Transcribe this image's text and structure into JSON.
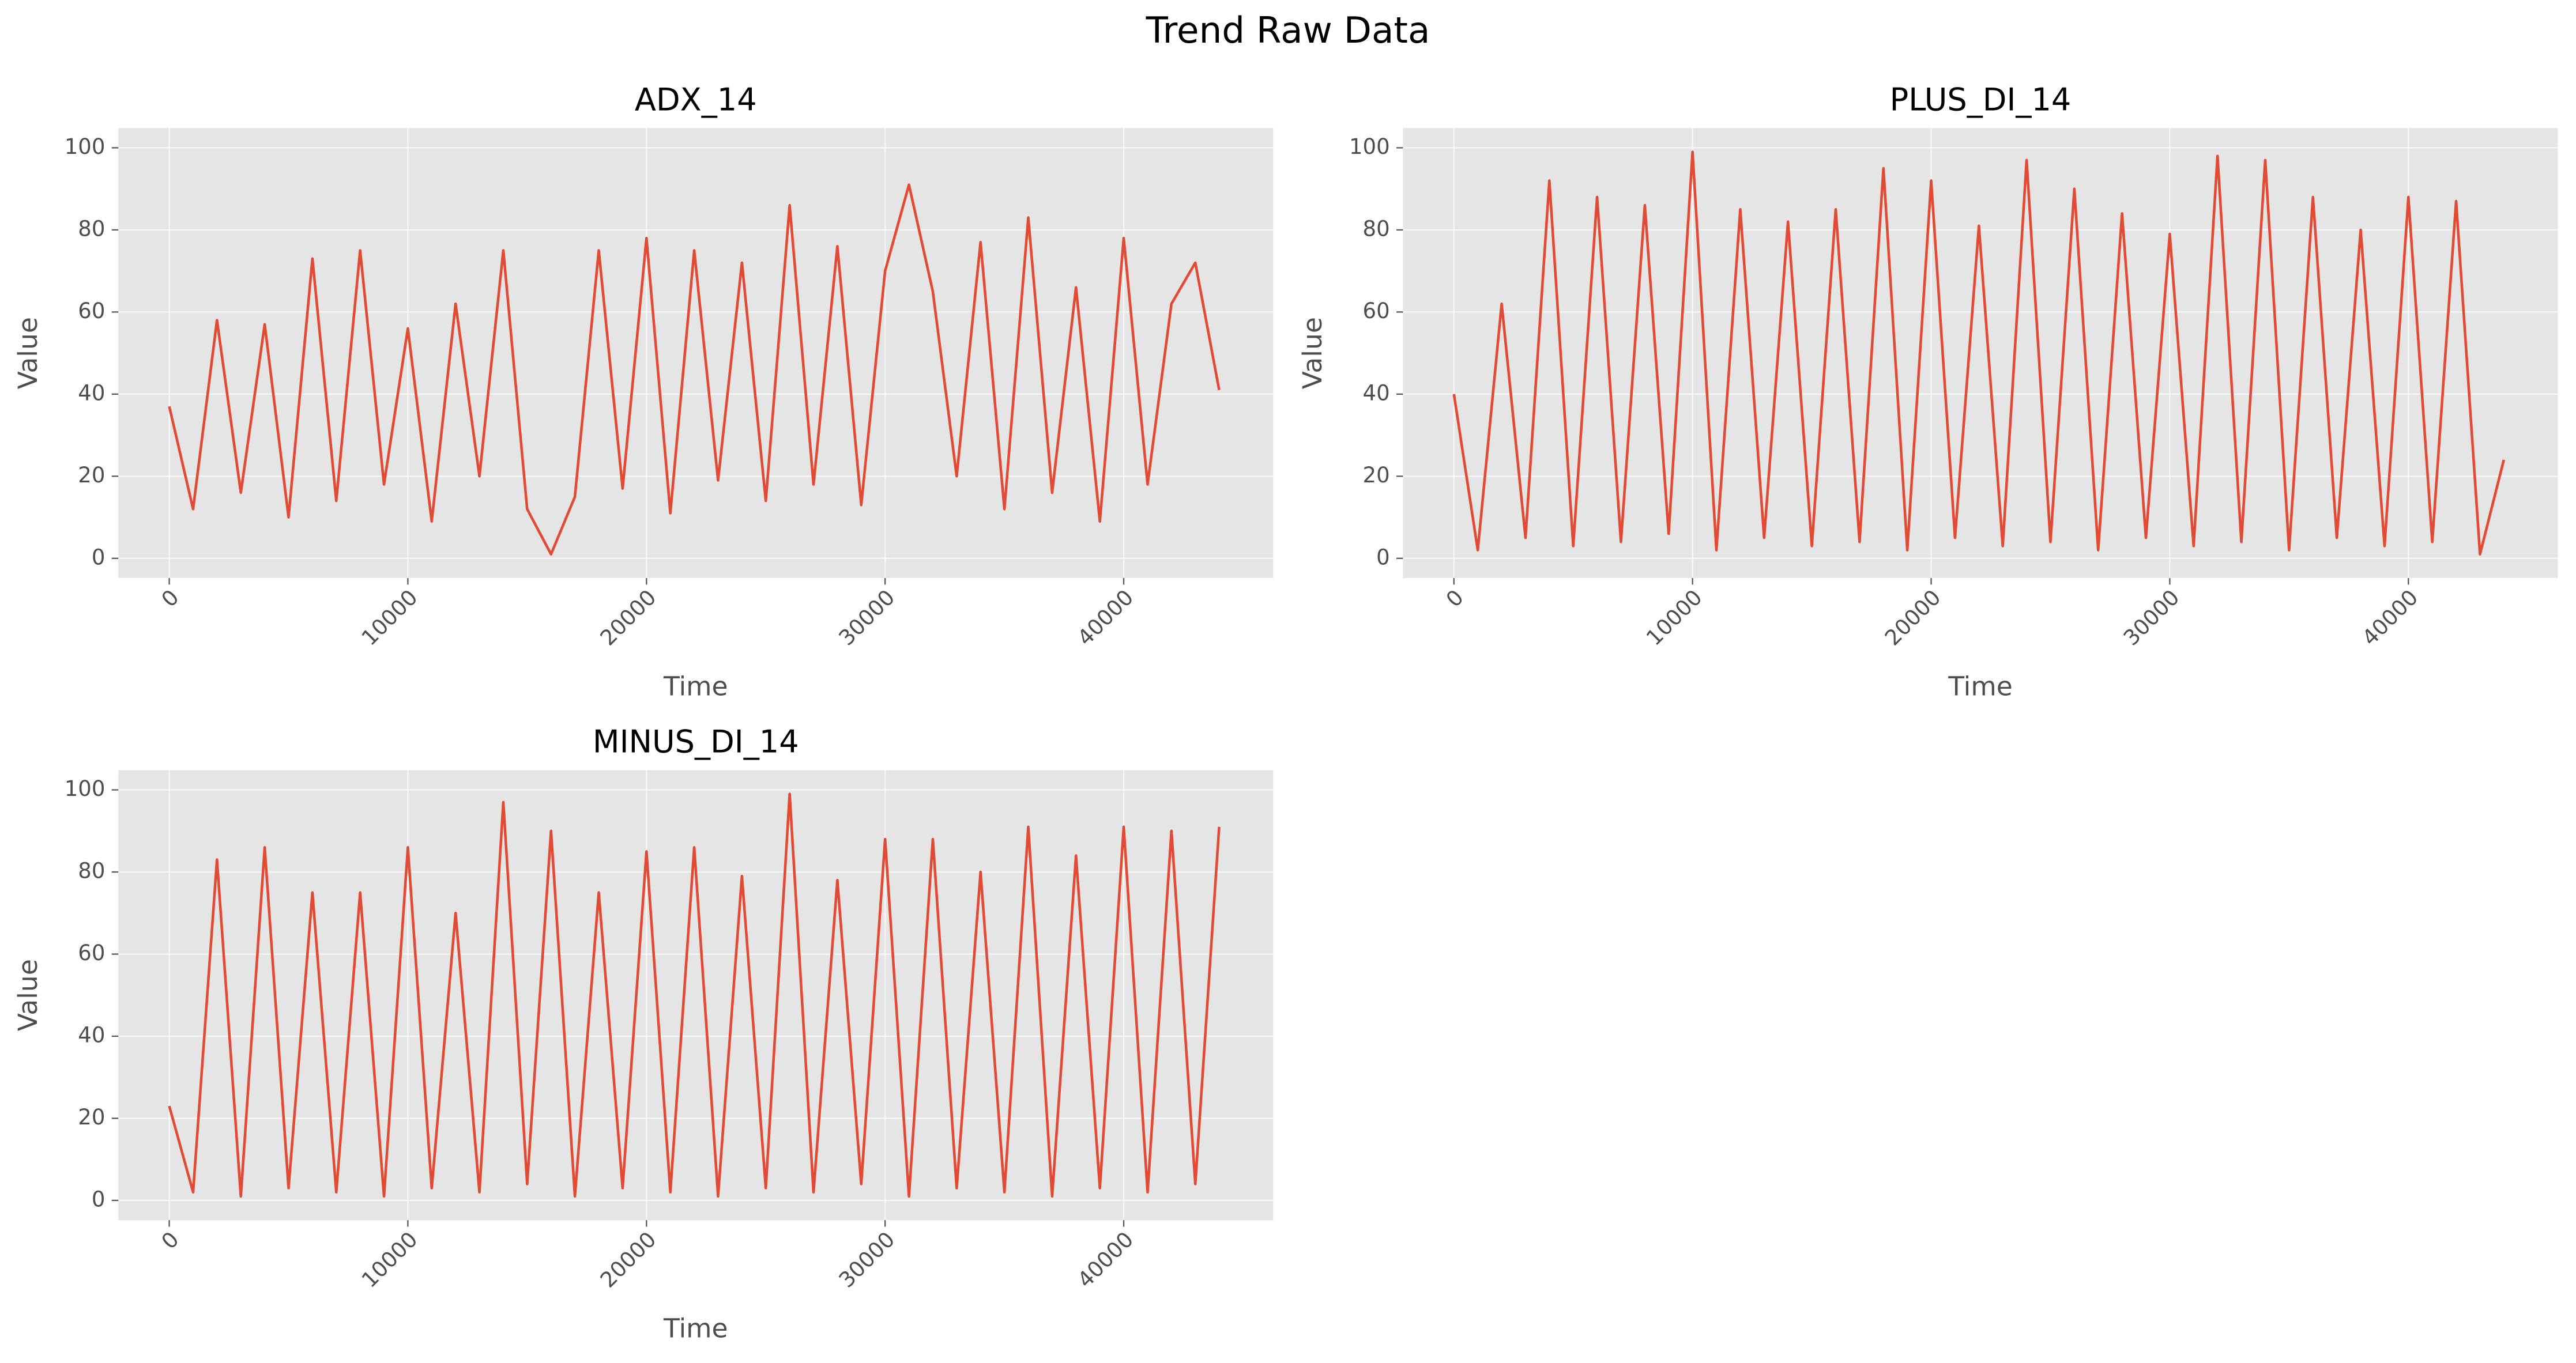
{
  "title": "Trend Raw Data",
  "chart_data": [
    {
      "type": "line",
      "title": "ADX_14",
      "xlabel": "Time",
      "ylabel": "Value",
      "x": [
        0,
        1000,
        2000,
        3000,
        4000,
        5000,
        6000,
        7000,
        8000,
        9000,
        10000,
        11000,
        12000,
        13000,
        14000,
        15000,
        16000,
        17000,
        18000,
        19000,
        20000,
        21000,
        22000,
        23000,
        24000,
        25000,
        26000,
        27000,
        28000,
        29000,
        30000,
        31000,
        32000,
        33000,
        34000,
        35000,
        36000,
        37000,
        38000,
        39000,
        40000,
        41000,
        42000,
        43000,
        44000
      ],
      "series": [
        {
          "color": "#e24a33",
          "values": [
            37,
            12,
            58,
            16,
            57,
            10,
            73,
            14,
            75,
            18,
            56,
            9,
            62,
            20,
            75,
            12,
            1,
            15,
            75,
            17,
            78,
            11,
            75,
            19,
            72,
            14,
            86,
            18,
            76,
            13,
            70,
            91,
            65,
            20,
            77,
            12,
            83,
            16,
            66,
            9,
            78,
            18,
            62,
            72,
            41
          ]
        }
      ],
      "xlim": [
        -2134,
        46265
      ],
      "ylim": [
        -4.8,
        104.8
      ],
      "xticks": [
        0,
        10000,
        20000,
        30000,
        40000
      ],
      "yticks": [
        0,
        20,
        40,
        60,
        80,
        100
      ],
      "grid": true
    },
    {
      "type": "line",
      "title": "PLUS_DI_14",
      "xlabel": "Time",
      "ylabel": "Value",
      "x": [
        0,
        1000,
        2000,
        3000,
        4000,
        5000,
        6000,
        7000,
        8000,
        9000,
        10000,
        11000,
        12000,
        13000,
        14000,
        15000,
        16000,
        17000,
        18000,
        19000,
        20000,
        21000,
        22000,
        23000,
        24000,
        25000,
        26000,
        27000,
        28000,
        29000,
        30000,
        31000,
        32000,
        33000,
        34000,
        35000,
        36000,
        37000,
        38000,
        39000,
        40000,
        41000,
        42000,
        43000,
        44000
      ],
      "series": [
        {
          "color": "#e24a33",
          "values": [
            40,
            2,
            62,
            5,
            92,
            3,
            88,
            4,
            86,
            6,
            99,
            2,
            85,
            5,
            82,
            3,
            85,
            4,
            95,
            2,
            92,
            5,
            81,
            3,
            97,
            4,
            90,
            2,
            84,
            5,
            79,
            3,
            98,
            4,
            97,
            2,
            88,
            5,
            80,
            3,
            88,
            4,
            87,
            1,
            24
          ]
        }
      ],
      "xlim": [
        -2134,
        46265
      ],
      "ylim": [
        -4.8,
        104.8
      ],
      "xticks": [
        0,
        10000,
        20000,
        30000,
        40000
      ],
      "yticks": [
        0,
        20,
        40,
        60,
        80,
        100
      ],
      "grid": true
    },
    {
      "type": "line",
      "title": "MINUS_DI_14",
      "xlabel": "Time",
      "ylabel": "Value",
      "x": [
        0,
        1000,
        2000,
        3000,
        4000,
        5000,
        6000,
        7000,
        8000,
        9000,
        10000,
        11000,
        12000,
        13000,
        14000,
        15000,
        16000,
        17000,
        18000,
        19000,
        20000,
        21000,
        22000,
        23000,
        24000,
        25000,
        26000,
        27000,
        28000,
        29000,
        30000,
        31000,
        32000,
        33000,
        34000,
        35000,
        36000,
        37000,
        38000,
        39000,
        40000,
        41000,
        42000,
        43000,
        44000
      ],
      "series": [
        {
          "color": "#e24a33",
          "values": [
            23,
            2,
            83,
            1,
            86,
            3,
            75,
            2,
            75,
            1,
            86,
            3,
            70,
            2,
            97,
            4,
            90,
            1,
            75,
            3,
            85,
            2,
            86,
            1,
            79,
            3,
            99,
            2,
            78,
            4,
            88,
            1,
            88,
            3,
            80,
            2,
            91,
            1,
            84,
            3,
            91,
            2,
            90,
            4,
            91
          ]
        }
      ],
      "xlim": [
        -2134,
        46265
      ],
      "ylim": [
        -4.8,
        104.8
      ],
      "xticks": [
        0,
        10000,
        20000,
        30000,
        40000
      ],
      "yticks": [
        0,
        20,
        40,
        60,
        80,
        100
      ],
      "grid": true
    }
  ]
}
